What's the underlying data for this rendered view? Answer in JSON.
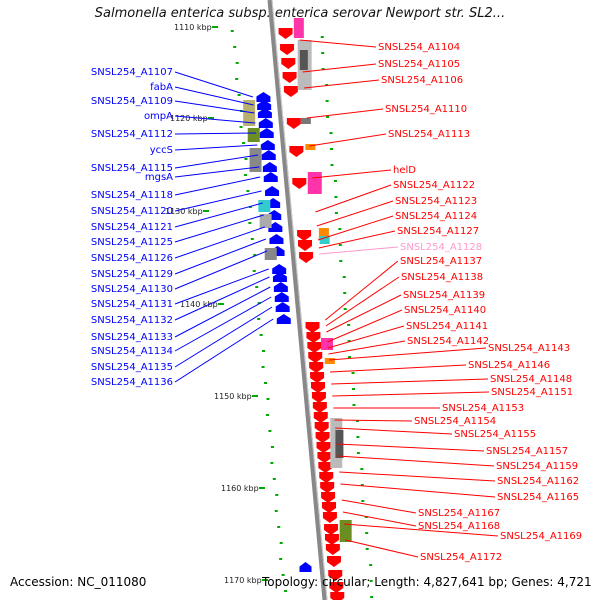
{
  "title": "Salmonella enterica subsp. enterica serovar Newport str. SL2...",
  "footer": {
    "accession": "Accession: NC_011080",
    "topology": "Topology: circular; Length: 4,827,641 bp; Genes: 4,721"
  },
  "colors": {
    "forward_strand": "#ff0000",
    "reverse_strand": "#0000ff",
    "faded_label": "#ff99cc",
    "ruler_tick": "#00aa00",
    "backbone": "#888888"
  },
  "kbp_marks": [
    {
      "label": "1110 kbp",
      "kbp": 1110
    },
    {
      "label": "1120 kbp",
      "kbp": 1120
    },
    {
      "label": "1130 kbp",
      "kbp": 1130
    },
    {
      "label": "1140 kbp",
      "kbp": 1140
    },
    {
      "label": "1150 kbp",
      "kbp": 1150
    },
    {
      "label": "1160 kbp",
      "kbp": 1160
    },
    {
      "label": "1170 kbp",
      "kbp": 1170
    }
  ],
  "reverse_genes": [
    "SNSL254_A1107",
    "fabA",
    "SNSL254_A1109",
    "ompA",
    "SNSL254_A1112",
    "yccS",
    "SNSL254_A1115",
    "mgsA",
    "SNSL254_A1118",
    "SNSL254_A1120",
    "SNSL254_A1121",
    "SNSL254_A1125",
    "SNSL254_A1126",
    "SNSL254_A1129",
    "SNSL254_A1130",
    "SNSL254_A1131",
    "SNSL254_A1132",
    "SNSL254_A1133",
    "SNSL254_A1134",
    "SNSL254_A1135",
    "SNSL254_A1136"
  ],
  "forward_genes": [
    "SNSL254_A1104",
    "SNSL254_A1105",
    "SNSL254_A1106",
    "SNSL254_A1110",
    "SNSL254_A1113",
    "helD",
    "SNSL254_A1122",
    "SNSL254_A1123",
    "SNSL254_A1124",
    "SNSL254_A1127",
    "SNSL254_A1128",
    "SNSL254_A1137",
    "SNSL254_A1138",
    "SNSL254_A1139",
    "SNSL254_A1140",
    "SNSL254_A1141",
    "SNSL254_A1142",
    "SNSL254_A1143",
    "SNSL254_A1146",
    "SNSL254_A1148",
    "SNSL254_A1151",
    "SNSL254_A1153",
    "SNSL254_A1154",
    "SNSL254_A1155",
    "SNSL254_A1157",
    "SNSL254_A1159",
    "SNSL254_A1162",
    "SNSL254_A1165",
    "SNSL254_A1167",
    "SNSL254_A1168",
    "SNSL254_A1169",
    "SNSL254_A1172"
  ]
}
